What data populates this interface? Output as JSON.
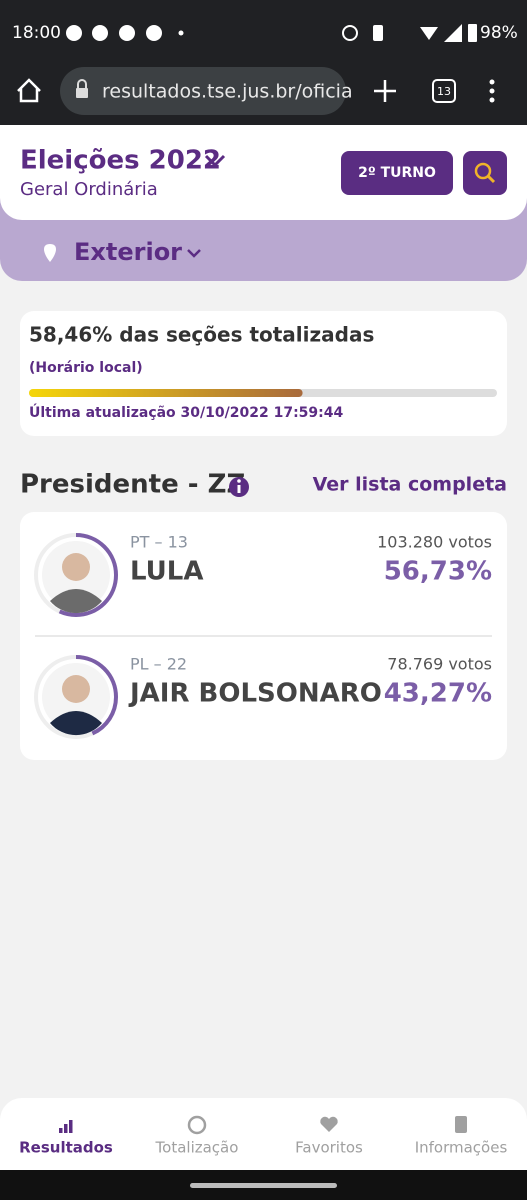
{
  "status_bar": {
    "time": "18:00",
    "battery": "98%"
  },
  "browser": {
    "url": "resultados.tse.jus.br/oficia",
    "tabs": "13"
  },
  "header": {
    "title": "Eleições 2022",
    "subtitle": "Geral Ordinária",
    "turn_button": "2º TURNO"
  },
  "location": "Exterior",
  "progress": {
    "title": "58,46% das seções totalizadas",
    "value": 58.46,
    "note": "(Horário local)",
    "updated": "Última atualização 30/10/2022 17:59:44"
  },
  "section": {
    "title": "Presidente - ZZ",
    "link": "Ver lista completa"
  },
  "candidates": [
    {
      "party": "PT – 13",
      "name": "LULA",
      "votes": "103.280 votos",
      "percent": "56,73%",
      "share": 56.73
    },
    {
      "party": "PL – 22",
      "name": "JAIR BOLSONARO",
      "votes": "78.769 votos",
      "percent": "43,27%",
      "share": 43.27
    }
  ],
  "nav": [
    "Resultados",
    "Totalização",
    "Favoritos",
    "Informações"
  ]
}
